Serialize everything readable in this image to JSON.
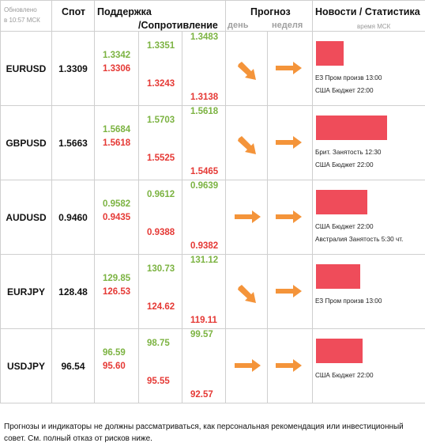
{
  "header": {
    "updated_line1": "Обновлено",
    "updated_line2": "в 10:57 МСК",
    "spot": "Спот",
    "support": "Поддержка",
    "resistance": "/Сопротивление",
    "forecast": "Прогноз",
    "day": "день",
    "week": "неделя",
    "news": "Новости / Статистика",
    "time_note": "время МСК"
  },
  "accent_colors": {
    "support": "#7cb342",
    "resistance": "#e53935",
    "arrow": "#f4943a",
    "news_bar": "#ef4c5a"
  },
  "rows": [
    {
      "pair": "EURUSD",
      "spot": "1.3309",
      "c1_green": "1.3342",
      "c1_red": "1.3306",
      "c2_green": "1.3351",
      "c2_red": "1.3243",
      "c3_green": "1.3483",
      "c3_red": "1.3138",
      "day_icon": "arrow-down-right-icon",
      "week_icon": "arrow-right-icon",
      "news_bar_level": 0.27,
      "news1": "ЕЗ Пром произв 13:00",
      "news2": "США Бюджет 22:00"
    },
    {
      "pair": "GBPUSD",
      "spot": "1.5663",
      "c1_green": "1.5684",
      "c1_red": "1.5618",
      "c2_green": "1.5703",
      "c2_red": "1.5525",
      "c3_green": "1.5618",
      "c3_red": "1.5465",
      "day_icon": "arrow-down-right-icon",
      "week_icon": "arrow-right-icon",
      "news_bar_level": 0.69,
      "news1": "Брит. Занятость 12:30",
      "news2": "США Бюджет 22:00"
    },
    {
      "pair": "AUDUSD",
      "spot": "0.9460",
      "c1_green": "0.9582",
      "c1_red": "0.9435",
      "c2_green": "0.9612",
      "c2_red": "0.9388",
      "c3_green": "0.9639",
      "c3_red": "0.9382",
      "day_icon": "arrow-right-icon",
      "week_icon": "arrow-right-icon",
      "news_bar_level": 0.5,
      "news1": "США Бюджет 22:00",
      "news2": "Австралия Занятость 5:30 чт."
    },
    {
      "pair": "EURJPY",
      "spot": "128.48",
      "c1_green": "129.85",
      "c1_red": "126.53",
      "c2_green": "130.73",
      "c2_red": "124.62",
      "c3_green": "131.12",
      "c3_red": "119.11",
      "day_icon": "arrow-down-right-icon",
      "week_icon": "arrow-right-icon",
      "news_bar_level": 0.43,
      "news1": "ЕЗ Пром произв 13:00",
      "news2": ""
    },
    {
      "pair": "USDJPY",
      "spot": "96.54",
      "c1_green": "96.59",
      "c1_red": "95.60",
      "c2_green": "98.75",
      "c2_red": "95.55",
      "c3_green": "99.57",
      "c3_red": "92.57",
      "day_icon": "arrow-right-icon",
      "week_icon": "arrow-right-icon",
      "news_bar_level": 0.45,
      "news1": "США Бюджет 22:00",
      "news2": ""
    }
  ],
  "disclaimer": "Прогнозы и индикаторы не должны рассматриваться, как персональная рекомендация или инвестиционный совет. См. полный отказ от рисков ниже."
}
